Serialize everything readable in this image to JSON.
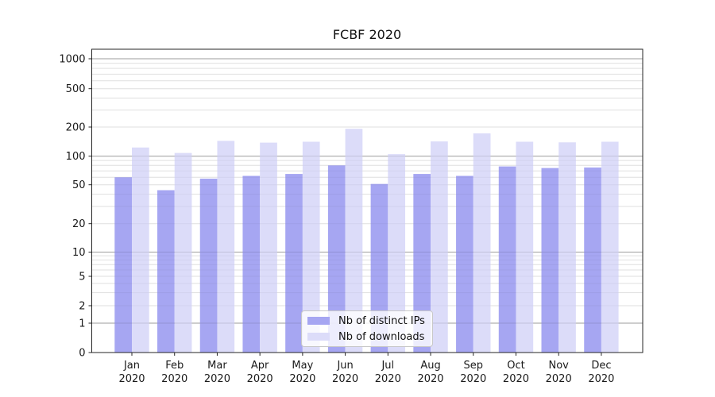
{
  "figure": {
    "background": "#ffffff"
  },
  "chart_data": {
    "type": "bar",
    "title": "FCBF 2020",
    "xlabel": "",
    "ylabel": "",
    "yscale": "symlog",
    "ylim": [
      0,
      1250
    ],
    "yticks": [
      0,
      1,
      2,
      5,
      10,
      20,
      50,
      100,
      200,
      500,
      1000
    ],
    "grid": "horizontal, log major + minor",
    "categories": [
      "Jan",
      "Feb",
      "Mar",
      "Apr",
      "May",
      "Jun",
      "Jul",
      "Aug",
      "Sep",
      "Oct",
      "Nov",
      "Dec"
    ],
    "year_label": "2020",
    "series": [
      {
        "name": "Nb of distinct IPs",
        "color": "#a6a6f2",
        "values": [
          60,
          44,
          58,
          62,
          65,
          80,
          51,
          65,
          62,
          78,
          75,
          76
        ]
      },
      {
        "name": "Nb of downloads",
        "color": "#dcdcf9",
        "values": [
          123,
          108,
          144,
          138,
          141,
          192,
          105,
          142,
          172,
          141,
          139,
          141
        ]
      }
    ],
    "legend_position": "lower center"
  },
  "colors": {
    "major_grid": "#b4b4b4",
    "minor_grid": "#eaeaea",
    "spine": "#262626",
    "text": "#1a1a1a"
  }
}
